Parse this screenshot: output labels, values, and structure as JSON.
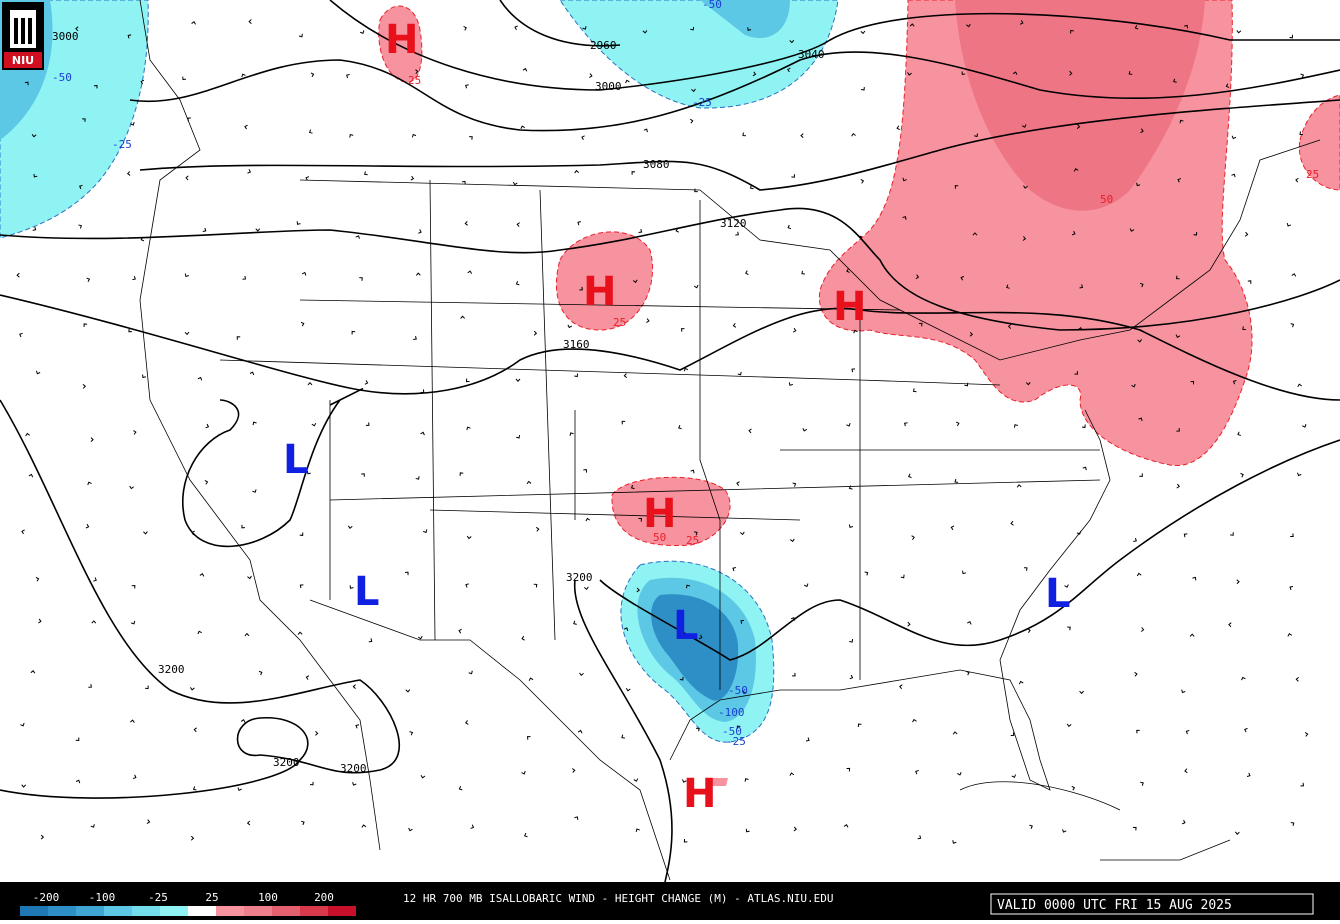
{
  "logo": "NIU",
  "height_contours": [
    {
      "label": 3000
    },
    {
      "label": 2960
    },
    {
      "label": 3000
    },
    {
      "label": 3040
    },
    {
      "label": 3080
    },
    {
      "label": 3120
    },
    {
      "label": 3160
    },
    {
      "label": 3200
    },
    {
      "label": 3200
    },
    {
      "label": 3200
    },
    {
      "label": 3200
    }
  ],
  "height_change_labels": [
    -50,
    -25,
    -50,
    -25,
    25,
    25,
    50,
    25,
    50,
    25,
    -50,
    -100,
    -50,
    -25
  ],
  "highs": [
    "H",
    "H",
    "H",
    "H",
    "H"
  ],
  "lows": [
    "L",
    "L",
    "L",
    "L"
  ],
  "colorbar": {
    "labels": [
      -200,
      -100,
      -25,
      25,
      100,
      200
    ]
  },
  "footer": {
    "title": "12 HR 700 MB ISALLOBARIC WIND - HEIGHT CHANGE (M) - ATLAS.NIU.EDU",
    "valid": "VALID 0000 UTC FRI 15 AUG 2025"
  }
}
